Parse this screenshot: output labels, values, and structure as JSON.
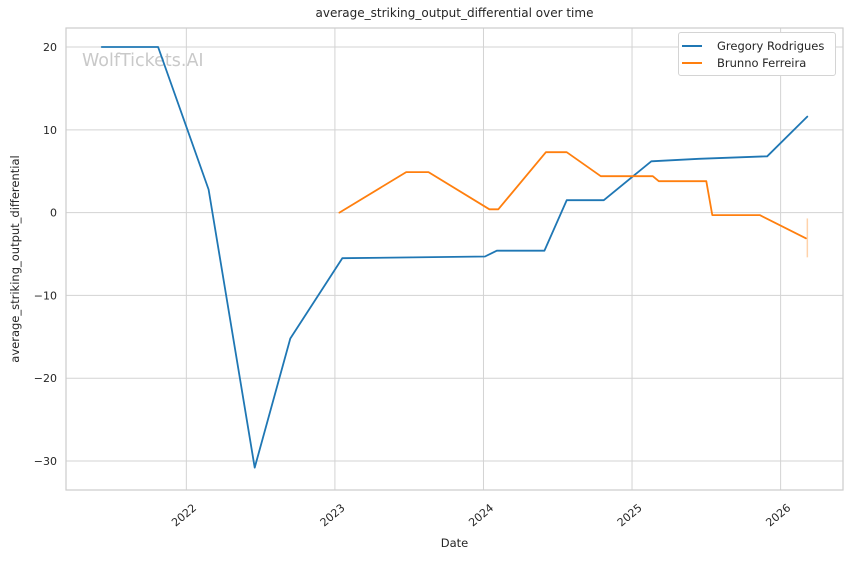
{
  "chart": {
    "title": "average_striking_output_differential over time",
    "xlabel": "Date",
    "ylabel": "average_striking_output_differential",
    "watermark": "WolfTickets.AI"
  },
  "chart_data": {
    "type": "line",
    "title": "average_striking_output_differential over time",
    "xlabel": "Date",
    "ylabel": "average_striking_output_differential",
    "xlim": [
      2021.19,
      2026.42
    ],
    "ylim": [
      -33.5,
      22.3
    ],
    "x_ticks": [
      2022,
      2023,
      2024,
      2025,
      2026
    ],
    "x_tick_labels": [
      "2022",
      "2023",
      "2024",
      "2025",
      "2026"
    ],
    "y_ticks": [
      20,
      10,
      0,
      -10,
      -20,
      -30
    ],
    "y_tick_labels": [
      "20",
      "10",
      "0",
      "−10",
      "−20",
      "−30"
    ],
    "grid": true,
    "legend_position": "upper right",
    "colors": {
      "grid": "#d3d3d3",
      "border": "#cccccc",
      "text": "#262626",
      "watermark": "#c9c9c9",
      "background": "#ffffff"
    },
    "series": [
      {
        "name": "Gregory Rodrigues",
        "color": "#1f77b4",
        "points": [
          [
            2021.43,
            20.0
          ],
          [
            2021.81,
            20.0
          ],
          [
            2022.15,
            2.8
          ],
          [
            2022.46,
            -30.8
          ],
          [
            2022.7,
            -15.2
          ],
          [
            2023.05,
            -5.5
          ],
          [
            2024.01,
            -5.3
          ],
          [
            2024.09,
            -4.6
          ],
          [
            2024.41,
            -4.6
          ],
          [
            2024.56,
            1.5
          ],
          [
            2024.81,
            1.5
          ],
          [
            2025.13,
            6.2
          ],
          [
            2025.45,
            6.5
          ],
          [
            2025.91,
            6.8
          ],
          [
            2026.18,
            11.6
          ]
        ]
      },
      {
        "name": "Brunno Ferreira",
        "color": "#ff7f0e",
        "points": [
          [
            2023.03,
            0.0
          ],
          [
            2023.48,
            4.9
          ],
          [
            2023.63,
            4.9
          ],
          [
            2024.04,
            0.4
          ],
          [
            2024.1,
            0.4
          ],
          [
            2024.42,
            7.3
          ],
          [
            2024.56,
            7.3
          ],
          [
            2024.79,
            4.4
          ],
          [
            2025.14,
            4.4
          ],
          [
            2025.18,
            3.8
          ],
          [
            2025.5,
            3.8
          ],
          [
            2025.54,
            -0.3
          ],
          [
            2025.86,
            -0.3
          ],
          [
            2026.17,
            -3.1
          ]
        ],
        "endcap": {
          "x": 2026.18,
          "y1": -0.7,
          "y2": -5.4,
          "opacity": 0.35
        }
      }
    ]
  }
}
